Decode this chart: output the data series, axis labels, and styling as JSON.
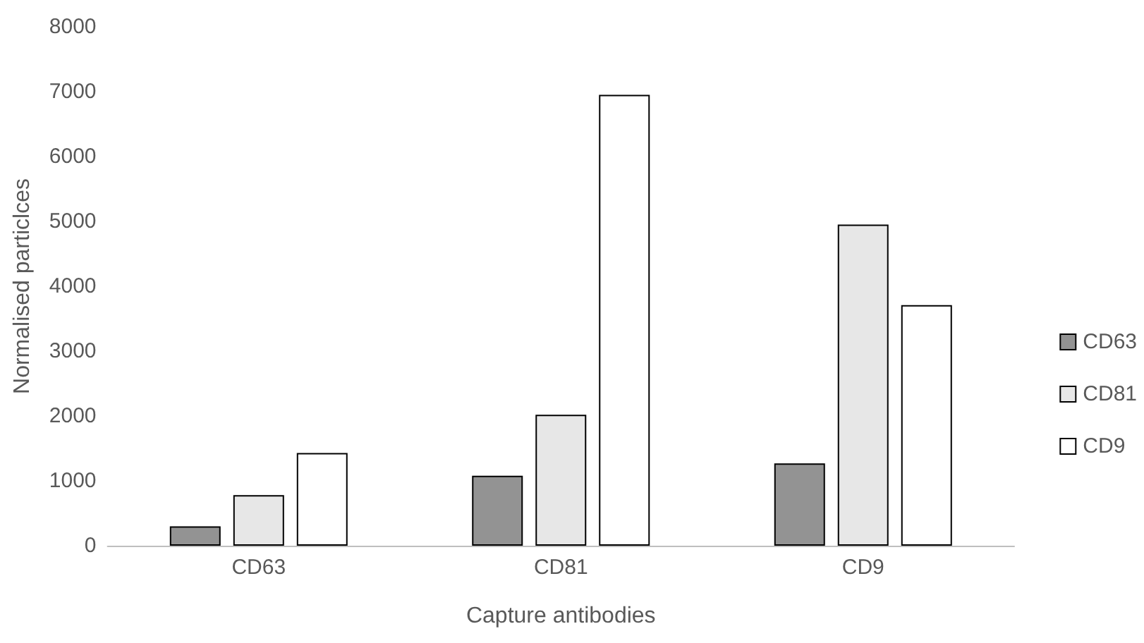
{
  "chart_data": {
    "type": "bar",
    "xlabel": "Capture antibodies",
    "ylabel": "Normalised particlces",
    "categories": [
      "CD63",
      "CD81",
      "CD9"
    ],
    "series": [
      {
        "name": "CD63",
        "color": "#939393",
        "values": [
          300,
          1080,
          1270
        ]
      },
      {
        "name": "CD81",
        "color": "#e7e7e7",
        "values": [
          780,
          2020,
          4950
        ]
      },
      {
        "name": "CD9",
        "color": "#ffffff",
        "values": [
          1430,
          6950,
          3710
        ]
      }
    ],
    "ylim": [
      0,
      8000
    ],
    "yticks": [
      0,
      1000,
      2000,
      3000,
      4000,
      5000,
      6000,
      7000,
      8000
    ],
    "grid": false,
    "legend": "right"
  }
}
